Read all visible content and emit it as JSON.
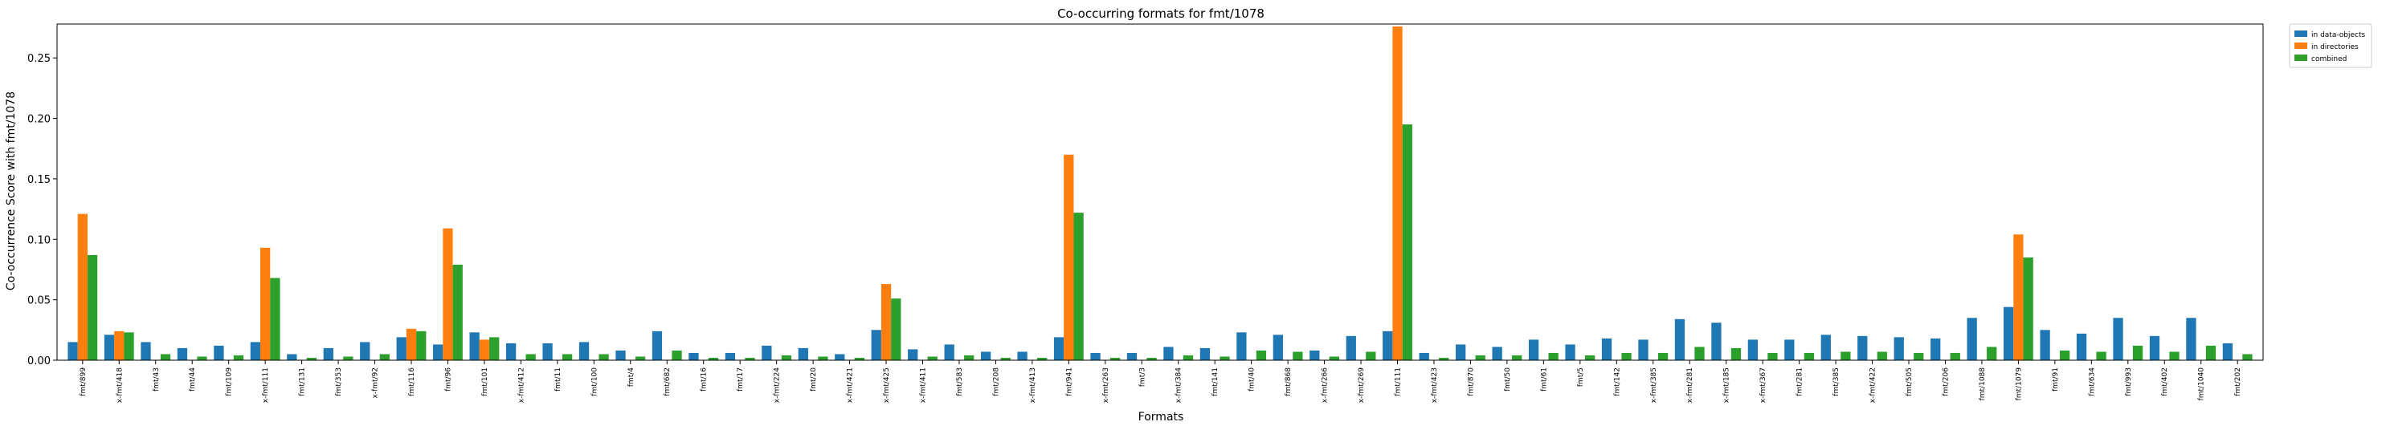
{
  "chart_data": {
    "type": "bar",
    "title": "Co-occurring formats for fmt/1078",
    "xlabel": "Formats",
    "ylabel": "Co-occurrence Score with fmt/1078",
    "ylim": [
      0,
      0.278
    ],
    "yticks": [
      0.0,
      0.05,
      0.1,
      0.15,
      0.2,
      0.25
    ],
    "ytick_labels": [
      "0.00",
      "0.05",
      "0.10",
      "0.15",
      "0.20",
      "0.25"
    ],
    "grid": false,
    "legend_position": "outside top-right",
    "categories": [
      "fmt/899",
      "x-fmt/418",
      "fmt/43",
      "fmt/44",
      "fmt/109",
      "x-fmt/111",
      "fmt/131",
      "fmt/353",
      "x-fmt/92",
      "fmt/116",
      "fmt/96",
      "fmt/101",
      "x-fmt/412",
      "fmt/11",
      "fmt/100",
      "fmt/4",
      "fmt/682",
      "fmt/16",
      "fmt/17",
      "x-fmt/224",
      "fmt/20",
      "x-fmt/421",
      "x-fmt/425",
      "x-fmt/411",
      "fmt/583",
      "fmt/208",
      "x-fmt/413",
      "fmt/941",
      "x-fmt/263",
      "fmt/3",
      "x-fmt/384",
      "fmt/141",
      "fmt/40",
      "fmt/868",
      "x-fmt/266",
      "x-fmt/269",
      "fmt/111",
      "x-fmt/423",
      "fmt/870",
      "fmt/50",
      "fmt/61",
      "fmt/5",
      "fmt/142",
      "x-fmt/385",
      "x-fmt/281",
      "x-fmt/185",
      "x-fmt/367",
      "fmt/281",
      "fmt/385",
      "x-fmt/422",
      "fmt/505",
      "fmt/206",
      "fmt/1088",
      "fmt/1079",
      "fmt/91",
      "fmt/634",
      "fmt/993",
      "fmt/402",
      "fmt/1040",
      "fmt/202"
    ],
    "series": [
      {
        "name": "in data-objects",
        "color": "#1f77b4",
        "values": [
          0.015,
          0.021,
          0.015,
          0.01,
          0.012,
          0.015,
          0.005,
          0.01,
          0.015,
          0.019,
          0.013,
          0.023,
          0.014,
          0.014,
          0.015,
          0.008,
          0.024,
          0.006,
          0.006,
          0.012,
          0.01,
          0.005,
          0.025,
          0.009,
          0.013,
          0.007,
          0.007,
          0.019,
          0.006,
          0.006,
          0.011,
          0.01,
          0.023,
          0.021,
          0.008,
          0.02,
          0.024,
          0.006,
          0.013,
          0.011,
          0.017,
          0.013,
          0.018,
          0.017,
          0.034,
          0.031,
          0.017,
          0.017,
          0.021,
          0.02,
          0.019,
          0.018,
          0.035,
          0.044,
          0.025,
          0.022,
          0.035,
          0.02,
          0.035,
          0.014
        ]
      },
      {
        "name": "in directories",
        "color": "#ff7f0e",
        "values": [
          0.121,
          0.024,
          0,
          0,
          0,
          0.093,
          0,
          0,
          0,
          0.026,
          0.109,
          0.017,
          0,
          0,
          0,
          0,
          0,
          0,
          0,
          0,
          0,
          0,
          0.063,
          0,
          0,
          0,
          0,
          0.17,
          0,
          0,
          0,
          0,
          0,
          0,
          0,
          0,
          0.276,
          0,
          0,
          0,
          0,
          0,
          0,
          0,
          0,
          0,
          0,
          0,
          0,
          0,
          0,
          0,
          0,
          0.104,
          0,
          0,
          0,
          0,
          0,
          0
        ]
      },
      {
        "name": "combined",
        "color": "#2ca02c",
        "values": [
          0.087,
          0.023,
          0.005,
          0.003,
          0.004,
          0.068,
          0.002,
          0.003,
          0.005,
          0.024,
          0.079,
          0.019,
          0.005,
          0.005,
          0.005,
          0.003,
          0.008,
          0.002,
          0.002,
          0.004,
          0.003,
          0.002,
          0.051,
          0.003,
          0.004,
          0.002,
          0.002,
          0.122,
          0.002,
          0.002,
          0.004,
          0.003,
          0.008,
          0.007,
          0.003,
          0.007,
          0.195,
          0.002,
          0.004,
          0.004,
          0.006,
          0.004,
          0.006,
          0.006,
          0.011,
          0.01,
          0.006,
          0.006,
          0.007,
          0.007,
          0.006,
          0.006,
          0.011,
          0.085,
          0.008,
          0.007,
          0.012,
          0.007,
          0.012,
          0.005
        ]
      }
    ]
  }
}
